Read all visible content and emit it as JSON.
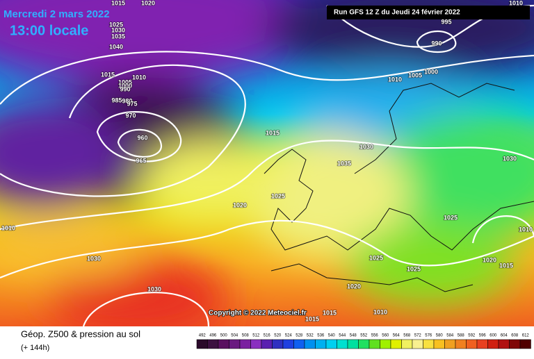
{
  "header": {
    "date": "Mercredi 2 mars 2022",
    "time": "13:00 locale",
    "run": "Run GFS 12 Z du Jeudi 24 février 2022"
  },
  "isobar_labels": [
    "1020",
    "1015",
    "1025",
    "1030",
    "1035",
    "1040",
    "1015",
    "1010",
    "1005",
    "1000",
    "990",
    "985",
    "980",
    "975",
    "970",
    "960",
    "965",
    "995",
    "990",
    "1010",
    "1000",
    "1005",
    "1010",
    "1015",
    "1030",
    "1035",
    "1030",
    "1025",
    "1020",
    "1025",
    "1010",
    "1010",
    "1030",
    "1025",
    "1020",
    "1015",
    "1025",
    "1030",
    "1020",
    "1015",
    "1010",
    "1015"
  ],
  "copyright": "Copyright © 2022 Meteociel.fr",
  "footer": {
    "title": "Géop. Z500 & pression au sol",
    "lead": "(+ 144h)"
  },
  "scale": {
    "labels": [
      "492",
      "496",
      "500",
      "504",
      "508",
      "512",
      "516",
      "520",
      "524",
      "528",
      "532",
      "536",
      "540",
      "544",
      "548",
      "552",
      "556",
      "560",
      "564",
      "568",
      "572",
      "576",
      "580",
      "584",
      "588",
      "592",
      "596",
      "600",
      "604",
      "608",
      "612"
    ]
  }
}
